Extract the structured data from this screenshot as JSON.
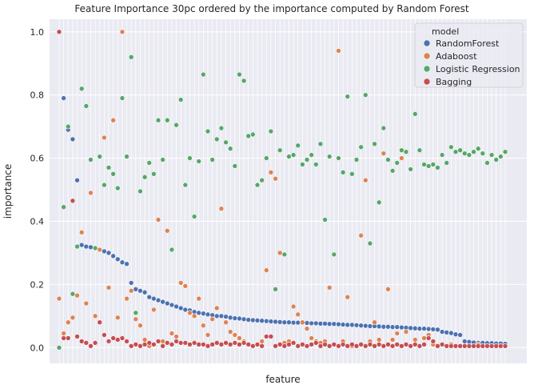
{
  "chart_data": {
    "type": "scatter",
    "title": "Feature Importance 30pc ordered by the importance computed by Random Forest",
    "xlabel": "feature",
    "ylabel": "importance",
    "ylim": [
      -0.05,
      1.04
    ],
    "yticks": [
      "0.0",
      "0.2",
      "0.4",
      "0.6",
      "0.8",
      "1.0"
    ],
    "grid": true,
    "legend": {
      "title": "model",
      "placement": "top-right"
    },
    "colors": {
      "RandomForest": "#4c72b0",
      "Adaboost": "#dd8452",
      "Logistic Regression": "#55a868",
      "Bagging": "#c44e52",
      "background": "#eaeaf2",
      "grid": "#ffffff"
    },
    "n_features": 100,
    "series": [
      {
        "name": "RandomForest",
        "values": [
          1.0,
          0.79,
          0.69,
          0.66,
          0.53,
          0.325,
          0.32,
          0.318,
          0.315,
          0.31,
          0.305,
          0.3,
          0.29,
          0.28,
          0.27,
          0.265,
          0.205,
          0.185,
          0.18,
          0.175,
          0.16,
          0.155,
          0.15,
          0.145,
          0.14,
          0.135,
          0.13,
          0.125,
          0.12,
          0.118,
          0.113,
          0.11,
          0.108,
          0.105,
          0.103,
          0.1,
          0.1,
          0.098,
          0.095,
          0.093,
          0.092,
          0.09,
          0.088,
          0.087,
          0.086,
          0.085,
          0.084,
          0.083,
          0.082,
          0.081,
          0.08,
          0.08,
          0.079,
          0.079,
          0.078,
          0.078,
          0.077,
          0.077,
          0.076,
          0.076,
          0.075,
          0.075,
          0.074,
          0.073,
          0.072,
          0.072,
          0.071,
          0.07,
          0.069,
          0.068,
          0.068,
          0.067,
          0.066,
          0.066,
          0.065,
          0.065,
          0.064,
          0.063,
          0.062,
          0.061,
          0.06,
          0.06,
          0.059,
          0.058,
          0.057,
          0.05,
          0.048,
          0.046,
          0.042,
          0.04,
          0.02,
          0.018,
          0.016,
          0.015,
          0.015,
          0.014,
          0.014,
          0.013,
          0.013,
          0.012
        ]
      },
      {
        "name": "Adaboost",
        "values": [
          0.155,
          0.045,
          0.08,
          0.095,
          0.165,
          0.365,
          0.14,
          0.49,
          0.1,
          0.31,
          0.665,
          0.19,
          0.72,
          0.095,
          1.0,
          0.155,
          0.18,
          0.09,
          0.07,
          0.025,
          0.005,
          0.12,
          0.405,
          0.02,
          0.37,
          0.045,
          0.035,
          0.205,
          0.195,
          0.11,
          0.1,
          0.155,
          0.07,
          0.04,
          0.09,
          0.125,
          0.44,
          0.08,
          0.05,
          0.04,
          0.03,
          0.02,
          0.01,
          0.005,
          0.01,
          0.02,
          0.245,
          0.555,
          0.535,
          0.3,
          0.015,
          0.02,
          0.13,
          0.105,
          0.08,
          0.06,
          0.03,
          0.02,
          0.015,
          0.02,
          0.19,
          0.01,
          0.94,
          0.02,
          0.16,
          0.005,
          0.005,
          0.355,
          0.53,
          0.02,
          0.08,
          0.025,
          0.615,
          0.185,
          0.025,
          0.045,
          0.6,
          0.05,
          0.005,
          0.025,
          0.005,
          0.03,
          0.04,
          0.01,
          0.005,
          0.01,
          0.005,
          0.01,
          0.005,
          0.005,
          0.005,
          0.005,
          0.005,
          0.01,
          0.005,
          0.005,
          0.005,
          0.005,
          0.005,
          0.005
        ]
      },
      {
        "name": "Logistic Regression",
        "values": [
          0.0,
          0.445,
          0.7,
          0.17,
          0.32,
          0.82,
          0.765,
          0.595,
          0.315,
          0.605,
          0.515,
          0.57,
          0.55,
          0.505,
          0.79,
          0.605,
          0.92,
          0.11,
          0.495,
          0.54,
          0.585,
          0.55,
          0.72,
          0.595,
          0.72,
          0.31,
          0.705,
          0.785,
          0.515,
          0.6,
          0.415,
          0.59,
          0.865,
          0.685,
          0.595,
          0.66,
          0.695,
          0.65,
          0.63,
          0.575,
          0.865,
          0.845,
          0.67,
          0.675,
          0.515,
          0.53,
          0.6,
          0.685,
          0.185,
          0.625,
          0.295,
          0.605,
          0.61,
          0.64,
          0.58,
          0.595,
          0.61,
          0.58,
          0.645,
          0.405,
          0.605,
          0.295,
          0.6,
          0.555,
          0.795,
          0.55,
          0.595,
          0.635,
          0.8,
          0.33,
          0.645,
          0.46,
          0.695,
          0.595,
          0.56,
          0.585,
          0.625,
          0.62,
          0.565,
          0.74,
          0.625,
          0.58,
          0.575,
          0.58,
          0.57,
          0.61,
          0.585,
          0.635,
          0.62,
          0.625,
          0.615,
          0.61,
          0.62,
          0.63,
          0.615,
          0.585,
          0.61,
          0.595,
          0.605,
          0.62
        ]
      },
      {
        "name": "Bagging",
        "values": [
          1.0,
          0.03,
          0.03,
          0.465,
          0.035,
          0.02,
          0.015,
          0.005,
          0.015,
          0.08,
          0.04,
          0.02,
          0.03,
          0.025,
          0.03,
          0.02,
          0.005,
          0.01,
          0.005,
          0.01,
          0.015,
          0.01,
          0.02,
          0.005,
          0.015,
          0.01,
          0.02,
          0.015,
          0.015,
          0.01,
          0.015,
          0.01,
          0.01,
          0.005,
          0.01,
          0.015,
          0.01,
          0.015,
          0.01,
          0.015,
          0.01,
          0.015,
          0.01,
          0.005,
          0.01,
          0.005,
          0.035,
          0.035,
          0.005,
          0.01,
          0.005,
          0.01,
          0.015,
          0.005,
          0.01,
          0.005,
          0.01,
          0.015,
          0.005,
          0.01,
          0.005,
          0.01,
          0.005,
          0.01,
          0.005,
          0.01,
          0.005,
          0.01,
          0.005,
          0.01,
          0.005,
          0.01,
          0.005,
          0.01,
          0.005,
          0.01,
          0.005,
          0.01,
          0.005,
          0.01,
          0.005,
          0.01,
          0.03,
          0.02,
          0.005,
          0.01,
          0.005,
          0.005,
          0.005,
          0.005,
          0.005,
          0.005,
          0.005,
          0.005,
          0.005,
          0.005,
          0.005,
          0.005,
          0.005,
          0.005
        ]
      }
    ]
  }
}
